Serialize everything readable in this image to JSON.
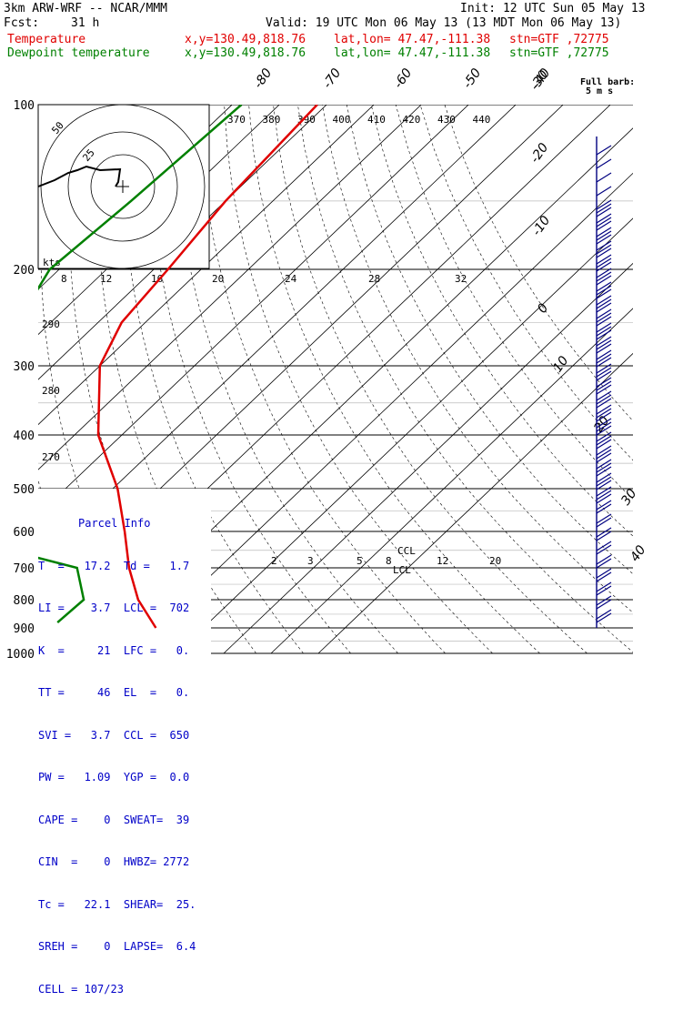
{
  "header": {
    "model": "3km ARW-WRF -- NCAR/MMM",
    "fcst_label": "Fcst:",
    "fcst_value": "31 h",
    "init": "Init: 12 UTC Sun 05 May 13",
    "valid": "Valid: 19 UTC Mon 06 May 13 (13 MDT Mon 06 May 13)",
    "temperature_line": {
      "name": "Temperature",
      "xy": "x,y=130.49,818.76",
      "latlon": "lat,lon= 47.47,-111.38",
      "stn": "stn=GTF ,72775"
    },
    "dewpoint_line": {
      "name": "Dewpoint temperature",
      "xy": "x,y=130.49,818.76",
      "latlon": "lat,lon= 47.47,-111.38",
      "stn": "stn=GTF ,72775"
    }
  },
  "barb_legend": {
    "line1": "Full barb:",
    "line2": "5 m s"
  },
  "hodograph": {
    "kts_label": "kts",
    "ring_labels": [
      "50",
      "25"
    ]
  },
  "parcel_info": {
    "title": "Parcel Info",
    "rows": [
      "T  =   17.2  Td =   1.7",
      "LI =    3.7  LCL =  702",
      "K  =     21  LFC =   0.",
      "TT =     46  EL  =   0.",
      "SVI =   3.7  CCL =  650",
      "PW =   1.09  YGP =  0.0",
      "CAPE =    0  SWEAT=  39",
      "CIN  =    0  HWBZ= 2772",
      "Tc =   22.1  SHEAR=  25.",
      "SREH =    0  LAPSE=  6.4",
      "CELL = 107/23"
    ]
  },
  "annotations": {
    "lcl": "LCL",
    "ccl": "CCL"
  },
  "colors": {
    "temperature": "#e00000",
    "dewpoint": "#008000",
    "barbs": "#000080",
    "info": "#0000c8"
  },
  "chart_data": {
    "type": "line",
    "title": "",
    "ylabel": "",
    "pressure_levels": [
      100,
      200,
      300,
      400,
      500,
      600,
      700,
      800,
      900,
      1000
    ],
    "isotherm_labels": [
      "40",
      "30",
      "20",
      "10",
      "0",
      "-10",
      "-20",
      "-30",
      "-40",
      "-50",
      "-60",
      "-70",
      "-80"
    ],
    "theta_labels": [
      "370",
      "380",
      "390",
      "400",
      "410",
      "420",
      "430",
      "440"
    ],
    "theta_e_labels": [
      "290",
      "280",
      "270"
    ],
    "upper_mixing_labels": [
      "8",
      "12",
      "16",
      "20",
      "24",
      "28",
      "32"
    ],
    "lower_mixing_labels": [
      "2",
      "3",
      "5",
      "8",
      "12",
      "20"
    ],
    "series": [
      {
        "name": "Temperature",
        "pressure": [
          100,
          150,
          200,
          250,
          300,
          400,
          500,
          600,
          700,
          800,
          900
        ],
        "temp_c": [
          -62,
          -60,
          -57,
          -55,
          -50,
          -35,
          -19,
          -8,
          1,
          10,
          20
        ]
      },
      {
        "name": "Dewpoint temperature",
        "pressure": [
          100,
          150,
          200,
          250,
          300,
          400,
          500,
          600,
          700,
          800,
          880
        ],
        "temp_c": [
          -78,
          -80,
          -82,
          -77,
          -73,
          -68,
          -58,
          -48,
          -10,
          -1.5,
          -2
        ]
      }
    ]
  }
}
